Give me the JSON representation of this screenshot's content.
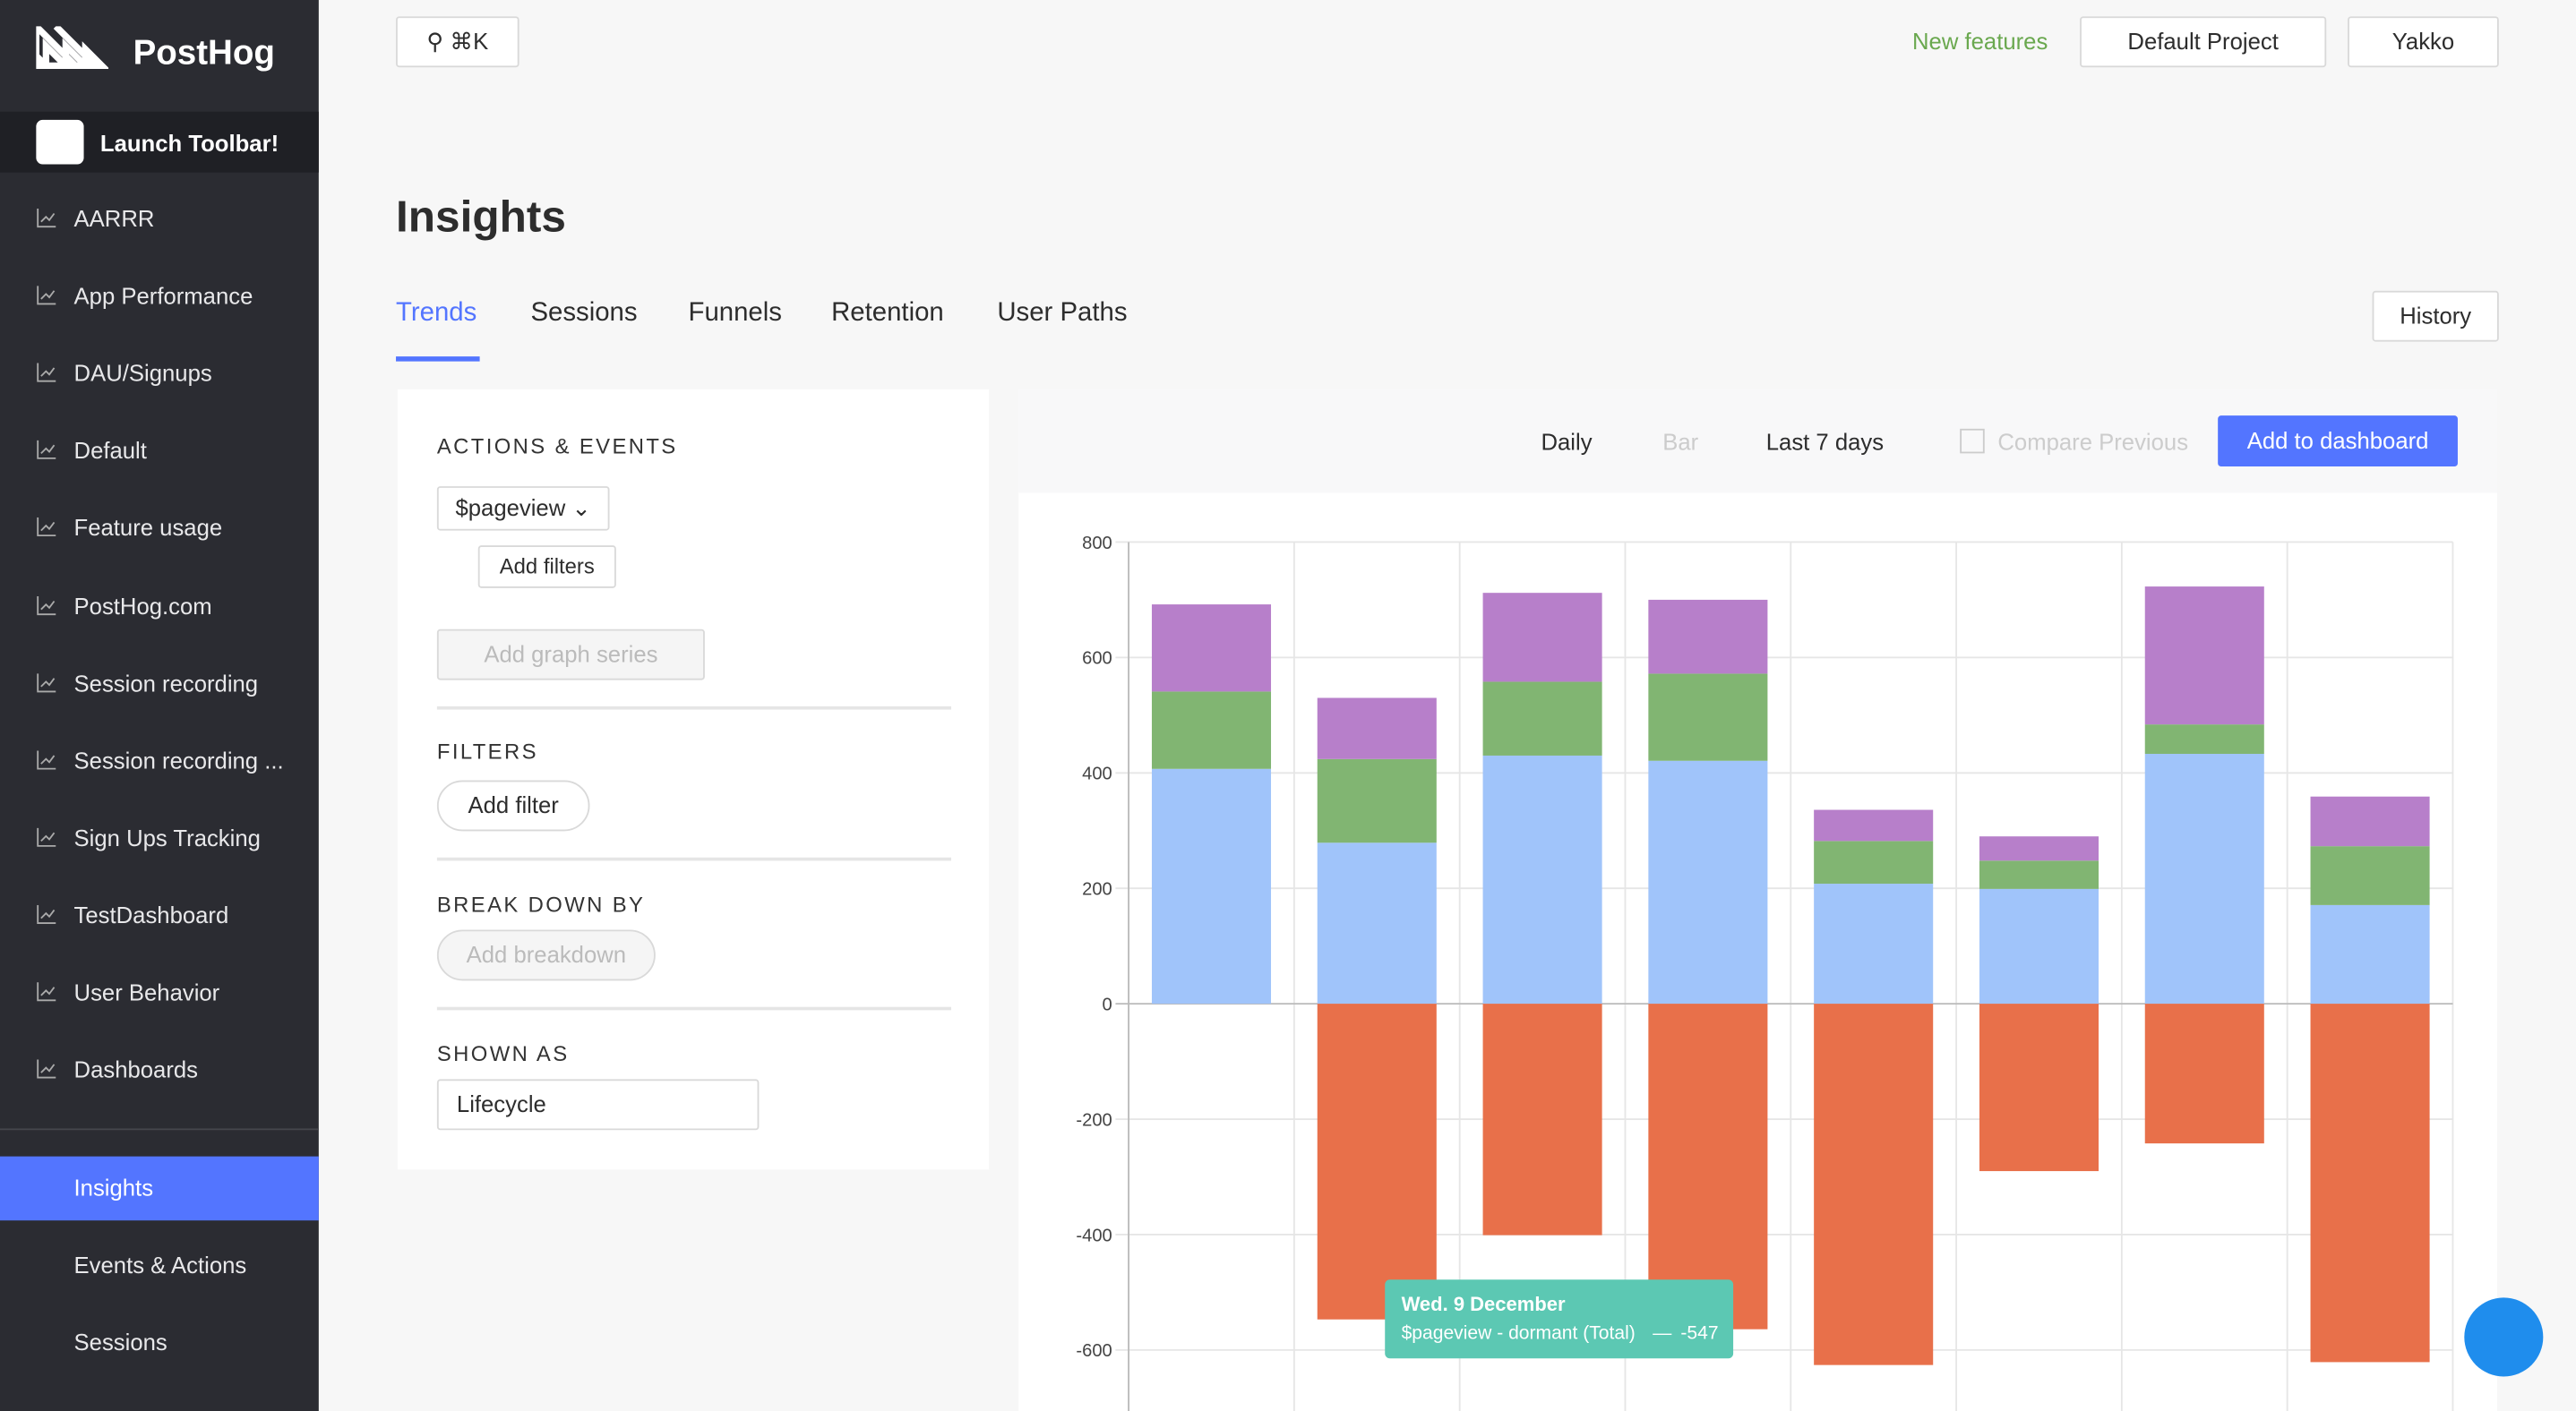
{
  "sidebar": {
    "brand": "PostHog",
    "launch": "Launch Toolbar!",
    "items": [
      "AARRR",
      "App Performance",
      "DAU/Signups",
      "Default",
      "Feature usage",
      "PostHog.com",
      "Session recording",
      "Session recording ...",
      "Sign Ups Tracking",
      "TestDashboard",
      "User Behavior",
      "Dashboards"
    ],
    "nav": [
      "Insights",
      "Events & Actions",
      "Sessions"
    ]
  },
  "topbar": {
    "search": "⌘K",
    "new_features": "New features",
    "project": "Default Project",
    "user": "Yakko"
  },
  "page": {
    "title": "Insights",
    "tabs": [
      "Trends",
      "Sessions",
      "Funnels",
      "Retention",
      "User Paths"
    ],
    "history": "History"
  },
  "panel": {
    "actions_heading": "ACTIONS & EVENTS",
    "event": "$pageview",
    "add_filters": "Add filters",
    "add_series": "Add graph series",
    "filters_heading": "FILTERS",
    "add_filter": "Add filter",
    "breakdown_heading": "BREAK DOWN BY",
    "add_breakdown": "Add breakdown",
    "shown_as_heading": "SHOWN AS",
    "shown_as": "Lifecycle"
  },
  "chart_controls": {
    "interval": "Daily",
    "display": "Bar",
    "range": "Last 7 days",
    "compare": "Compare Previous",
    "add_dashboard": "Add to dashboard"
  },
  "chart_data": {
    "type": "bar",
    "stacked": true,
    "grid": true,
    "series": [
      {
        "color": "#a0c4fa",
        "values": [
          407,
          279,
          430,
          421,
          208,
          199,
          433,
          171
        ]
      },
      {
        "color": "#81b572",
        "values": [
          134,
          145,
          128,
          151,
          74,
          49,
          51,
          102
        ]
      },
      {
        "color": "#b77fca",
        "values": [
          151,
          106,
          154,
          128,
          54,
          42,
          239,
          86
        ]
      },
      {
        "color": "#e8704a",
        "values": [
          0,
          -547,
          -401,
          -564,
          -626,
          -290,
          -242,
          -621
        ]
      }
    ],
    "ylim": [
      -700,
      800
    ],
    "yticks": [
      800,
      600,
      400,
      200,
      0,
      -200,
      -400,
      -600
    ],
    "tooltip": {
      "title": "Wed. 9 December",
      "label": "$pageview - dormant (Total)",
      "separator": "—"
    }
  }
}
